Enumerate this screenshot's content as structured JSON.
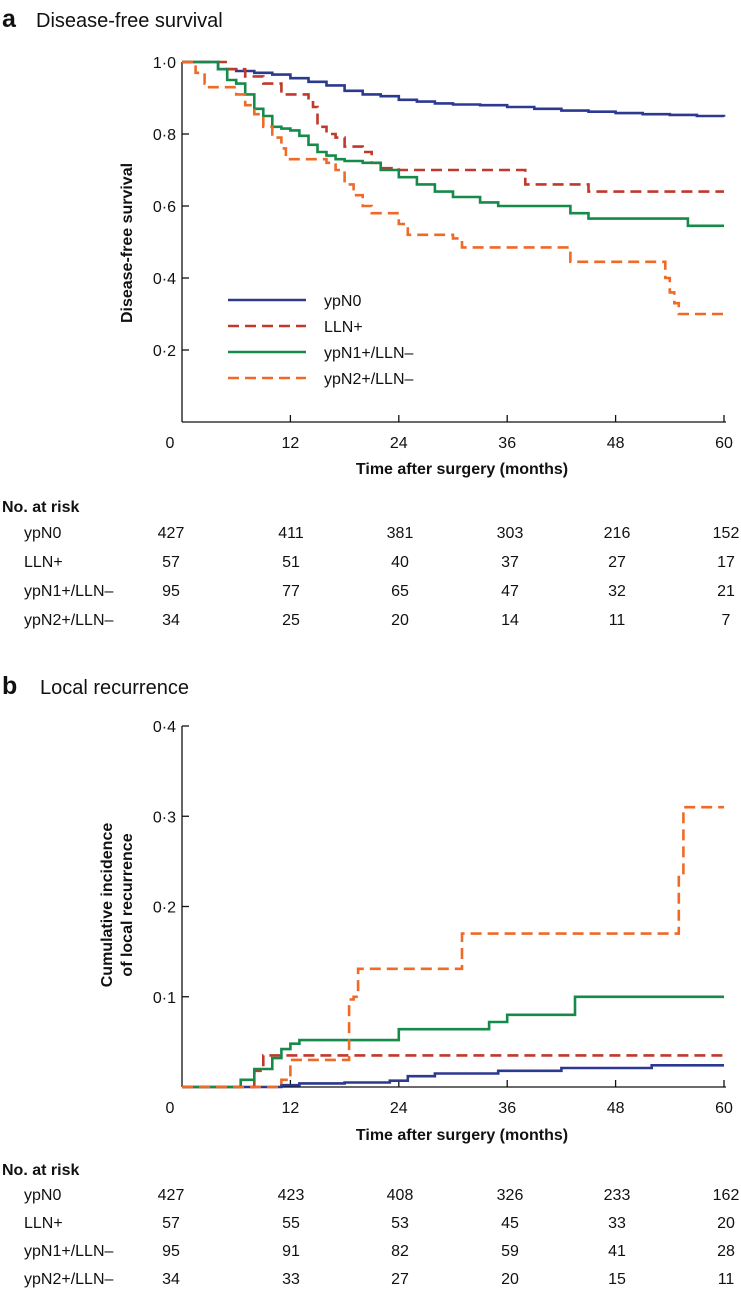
{
  "colors": {
    "ypN0": "#2b3990",
    "LLN+": "#c0392b",
    "ypN1+/LLN–": "#168a4a",
    "ypN2+/LLN–": "#ef6a27",
    "axis": "#111111"
  },
  "chart_data": [
    {
      "type": "line",
      "panel_letter": "a",
      "title": "Disease-free survival",
      "xlabel": "Time after surgery (months)",
      "ylabel": "Disease-free survival",
      "xlim": [
        0,
        60
      ],
      "ylim": [
        0,
        1.0
      ],
      "xticks": [
        "0",
        "12",
        "24",
        "36",
        "48",
        "60"
      ],
      "yticks": [
        "0·2",
        "0·4",
        "0·6",
        "0·8",
        "1·0"
      ],
      "legend": [
        {
          "name": "ypN0",
          "dash": "solid"
        },
        {
          "name": "LLN+",
          "dash": "dashed"
        },
        {
          "name": "ypN1+/LLN–",
          "dash": "solid"
        },
        {
          "name": "ypN2+/LLN–",
          "dash": "dashed"
        }
      ],
      "series": [
        {
          "name": "ypN0",
          "dash": "solid",
          "points": [
            [
              0,
              1.0
            ],
            [
              3,
              1.0
            ],
            [
              4,
              0.98
            ],
            [
              6,
              0.975
            ],
            [
              8,
              0.97
            ],
            [
              10,
              0.965
            ],
            [
              12,
              0.955
            ],
            [
              14,
              0.945
            ],
            [
              16,
              0.935
            ],
            [
              18,
              0.92
            ],
            [
              20,
              0.91
            ],
            [
              22,
              0.905
            ],
            [
              24,
              0.895
            ],
            [
              26,
              0.89
            ],
            [
              28,
              0.885
            ],
            [
              30,
              0.882
            ],
            [
              33,
              0.88
            ],
            [
              36,
              0.875
            ],
            [
              39,
              0.87
            ],
            [
              42,
              0.865
            ],
            [
              45,
              0.862
            ],
            [
              48,
              0.858
            ],
            [
              51,
              0.855
            ],
            [
              54,
              0.853
            ],
            [
              57,
              0.85
            ],
            [
              60,
              0.848
            ]
          ]
        },
        {
          "name": "LLN+",
          "dash": "dashed",
          "points": [
            [
              0,
              1.0
            ],
            [
              3,
              1.0
            ],
            [
              5,
              0.98
            ],
            [
              7,
              0.96
            ],
            [
              9,
              0.94
            ],
            [
              11,
              0.91
            ],
            [
              12,
              0.91
            ],
            [
              14,
              0.895
            ],
            [
              14.5,
              0.875
            ],
            [
              15,
              0.82
            ],
            [
              16,
              0.8
            ],
            [
              17,
              0.79
            ],
            [
              18,
              0.765
            ],
            [
              20,
              0.75
            ],
            [
              21,
              0.72
            ],
            [
              22,
              0.705
            ],
            [
              24,
              0.7
            ],
            [
              37,
              0.7
            ],
            [
              38,
              0.66
            ],
            [
              44,
              0.66
            ],
            [
              45,
              0.64
            ],
            [
              60,
              0.64
            ]
          ]
        },
        {
          "name": "ypN1+/LLN–",
          "dash": "solid",
          "points": [
            [
              0,
              1.0
            ],
            [
              3,
              1.0
            ],
            [
              4,
              0.98
            ],
            [
              5,
              0.95
            ],
            [
              6,
              0.94
            ],
            [
              7,
              0.91
            ],
            [
              8,
              0.87
            ],
            [
              9,
              0.85
            ],
            [
              10,
              0.82
            ],
            [
              11,
              0.815
            ],
            [
              12,
              0.81
            ],
            [
              13,
              0.795
            ],
            [
              14,
              0.77
            ],
            [
              15,
              0.75
            ],
            [
              16,
              0.74
            ],
            [
              17,
              0.73
            ],
            [
              18,
              0.725
            ],
            [
              20,
              0.72
            ],
            [
              22,
              0.7
            ],
            [
              24,
              0.68
            ],
            [
              26,
              0.66
            ],
            [
              28,
              0.64
            ],
            [
              30,
              0.625
            ],
            [
              33,
              0.61
            ],
            [
              35,
              0.6
            ],
            [
              42,
              0.6
            ],
            [
              43,
              0.58
            ],
            [
              45,
              0.565
            ],
            [
              55,
              0.565
            ],
            [
              56,
              0.545
            ],
            [
              60,
              0.545
            ]
          ]
        },
        {
          "name": "ypN2+/LLN–",
          "dash": "dashed",
          "points": [
            [
              0,
              1.0
            ],
            [
              1,
              1.0
            ],
            [
              1.5,
              0.97
            ],
            [
              2.5,
              0.94
            ],
            [
              3,
              0.93
            ],
            [
              5,
              0.93
            ],
            [
              6,
              0.91
            ],
            [
              7,
              0.88
            ],
            [
              8,
              0.855
            ],
            [
              9,
              0.82
            ],
            [
              10,
              0.79
            ],
            [
              11,
              0.76
            ],
            [
              11.5,
              0.73
            ],
            [
              15,
              0.73
            ],
            [
              16,
              0.72
            ],
            [
              17,
              0.7
            ],
            [
              18,
              0.66
            ],
            [
              19,
              0.63
            ],
            [
              20,
              0.6
            ],
            [
              21,
              0.58
            ],
            [
              23,
              0.58
            ],
            [
              24,
              0.55
            ],
            [
              25,
              0.52
            ],
            [
              30,
              0.51
            ],
            [
              31,
              0.485
            ],
            [
              42,
              0.485
            ],
            [
              43,
              0.445
            ],
            [
              53,
              0.445
            ],
            [
              53.5,
              0.4
            ],
            [
              54,
              0.36
            ],
            [
              54.5,
              0.33
            ],
            [
              55,
              0.3
            ],
            [
              60,
              0.3
            ]
          ]
        }
      ],
      "at_risk": {
        "header": "No. at risk",
        "rows": [
          {
            "label": "ypN0",
            "values": [
              "427",
              "411",
              "381",
              "303",
              "216",
              "152"
            ]
          },
          {
            "label": "LLN+",
            "values": [
              "57",
              "51",
              "40",
              "37",
              "27",
              "17"
            ]
          },
          {
            "label": "ypN1+/LLN–",
            "values": [
              "95",
              "77",
              "65",
              "47",
              "32",
              "21"
            ]
          },
          {
            "label": "ypN2+/LLN–",
            "values": [
              "34",
              "25",
              "20",
              "14",
              "11",
              "7"
            ]
          }
        ]
      }
    },
    {
      "type": "line",
      "panel_letter": "b",
      "title": "Local recurrence",
      "xlabel": "Time after surgery (months)",
      "ylabel": "Cumulative incidence\nof local recurrence",
      "ylabel_lines": [
        "Cumulative incidence",
        "of local recurrence"
      ],
      "xlim": [
        0,
        60
      ],
      "ylim": [
        0,
        0.4
      ],
      "xticks": [
        "0",
        "12",
        "24",
        "36",
        "48",
        "60"
      ],
      "yticks": [
        "0·1",
        "0·2",
        "0·3",
        "0·4"
      ],
      "series": [
        {
          "name": "ypN0",
          "dash": "solid",
          "points": [
            [
              0,
              0
            ],
            [
              10,
              0
            ],
            [
              11,
              0.002
            ],
            [
              13,
              0.004
            ],
            [
              18,
              0.005
            ],
            [
              23,
              0.007
            ],
            [
              25,
              0.012
            ],
            [
              28,
              0.015
            ],
            [
              35,
              0.018
            ],
            [
              42,
              0.021
            ],
            [
              52,
              0.024
            ],
            [
              60,
              0.024
            ]
          ]
        },
        {
          "name": "LLN+",
          "dash": "dashed",
          "points": [
            [
              0,
              0
            ],
            [
              7,
              0
            ],
            [
              8,
              0.018
            ],
            [
              9,
              0.035
            ],
            [
              60,
              0.035
            ]
          ]
        },
        {
          "name": "ypN1+/LLN–",
          "dash": "solid",
          "points": [
            [
              0,
              0
            ],
            [
              6,
              0
            ],
            [
              6.5,
              0.008
            ],
            [
              8,
              0.02
            ],
            [
              10,
              0.032
            ],
            [
              11,
              0.042
            ],
            [
              12,
              0.048
            ],
            [
              13,
              0.052
            ],
            [
              20,
              0.052
            ],
            [
              24,
              0.064
            ],
            [
              34,
              0.072
            ],
            [
              36,
              0.08
            ],
            [
              43,
              0.08
            ],
            [
              43.5,
              0.1
            ],
            [
              60,
              0.1
            ]
          ]
        },
        {
          "name": "ypN2+/LLN–",
          "dash": "dashed",
          "points": [
            [
              0,
              0
            ],
            [
              10.5,
              0
            ],
            [
              11,
              0.008
            ],
            [
              12,
              0.03
            ],
            [
              18,
              0.03
            ],
            [
              18.5,
              0.097
            ],
            [
              19,
              0.1
            ],
            [
              19.5,
              0.131
            ],
            [
              30.5,
              0.131
            ],
            [
              31,
              0.17
            ],
            [
              54.5,
              0.17
            ],
            [
              55,
              0.235
            ],
            [
              55.5,
              0.31
            ],
            [
              60,
              0.31
            ]
          ]
        }
      ],
      "at_risk": {
        "header": "No. at risk",
        "rows": [
          {
            "label": "ypN0",
            "values": [
              "427",
              "423",
              "408",
              "326",
              "233",
              "162"
            ]
          },
          {
            "label": "LLN+",
            "values": [
              "57",
              "55",
              "53",
              "45",
              "33",
              "20"
            ]
          },
          {
            "label": "ypN1+/LLN–",
            "values": [
              "95",
              "91",
              "82",
              "59",
              "41",
              "28"
            ]
          },
          {
            "label": "ypN2+/LLN–",
            "values": [
              "34",
              "33",
              "27",
              "20",
              "15",
              "11"
            ]
          }
        ]
      }
    }
  ]
}
